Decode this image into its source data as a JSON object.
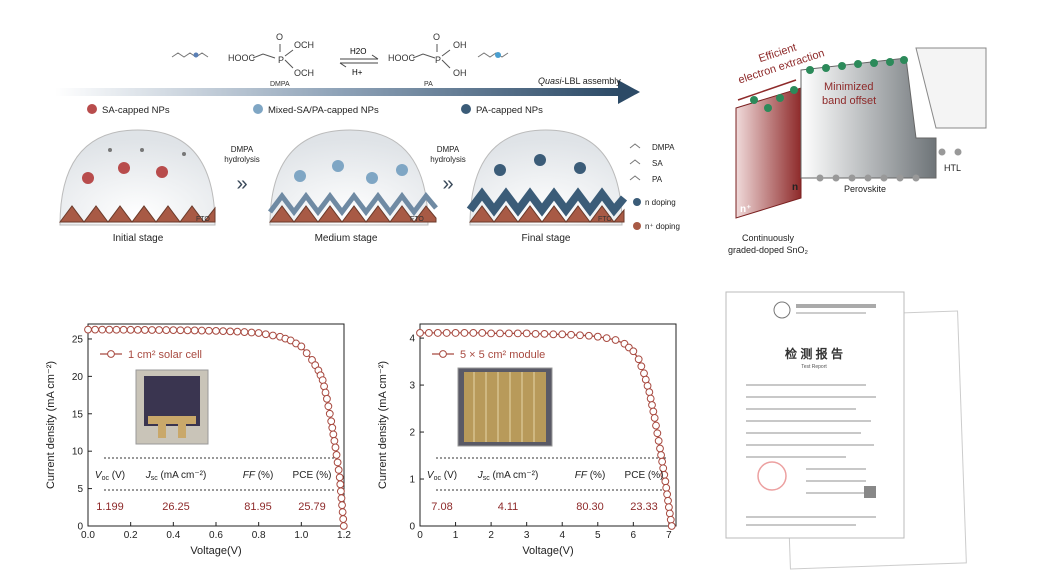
{
  "figure": {
    "top": {
      "dmpa_hooc": "HOOC",
      "dmpa_och3_top": "OCH",
      "dmpa_och3_bottom": "OCH",
      "dmpa_name": "DMPA",
      "reagent_top": "H2O",
      "reagent_bottom": "H+",
      "pa_hooc": "HOOC",
      "pa_oh_top": "OH",
      "pa_oh_bottom": "OH",
      "pa_name": "PA",
      "arrow_label_italic": "Quasi",
      "arrow_label_rest": "-LBL assembly",
      "legend_sa": "SA-capped NPs",
      "legend_mixed": "Mixed-SA/PA-capped NPs",
      "legend_pa": "PA-capped NPs",
      "step1_a": "DMPA",
      "step1_b": "hydrolysis",
      "step2_a": "DMPA",
      "step2_b": "hydrolysis",
      "fto": "FTO",
      "stage_initial": "Initial stage",
      "stage_medium": "Medium stage",
      "stage_final": "Final stage",
      "key_dmpa": "DMPA",
      "key_sa": "SA",
      "key_pa": "PA",
      "key_n_doping": "n doping",
      "key_n_plus_doping": "n⁺ doping"
    },
    "band": {
      "efficient_1": "Efficient",
      "efficient_2": "electron extraction",
      "minimized_1": "Minimized",
      "minimized_2": "band offset",
      "n_label": "n",
      "n_plus_label": "n⁺",
      "perovskite": "Perovskite",
      "htl": "HTL",
      "caption_1": "Continuously",
      "caption_2": "graded-doped SnO₂"
    },
    "cert": {
      "title": "检 测 报 告",
      "subtitle": "Test Report"
    }
  },
  "chart_data": [
    {
      "type": "line",
      "legend": "1 cm² solar cell",
      "xlabel": "Voltage(V)",
      "ylabel": "Current density (mA cm⁻²)",
      "xlim": [
        0,
        1.2
      ],
      "ylim": [
        0,
        27
      ],
      "xticks": [
        "0.0",
        "0.2",
        "0.4",
        "0.6",
        "0.8",
        "1.0",
        "1.2"
      ],
      "yticks": [
        "0",
        "5",
        "10",
        "15",
        "20",
        "25"
      ],
      "x": [
        0.0,
        0.1,
        0.2,
        0.3,
        0.4,
        0.5,
        0.6,
        0.7,
        0.8,
        0.9,
        0.95,
        1.0,
        1.05,
        1.08,
        1.1,
        1.12,
        1.14,
        1.16,
        1.18,
        1.199
      ],
      "y": [
        26.25,
        26.24,
        26.22,
        26.2,
        26.18,
        26.14,
        26.08,
        25.98,
        25.8,
        25.3,
        24.8,
        24.0,
        22.2,
        20.8,
        19.5,
        17.0,
        14.0,
        10.5,
        6.5,
        0.0
      ],
      "table_headers": [
        "V",
        "J",
        "FF (%)",
        "PCE (%)"
      ],
      "header_sub": [
        "oc",
        "sc"
      ],
      "header_units": [
        " (V)",
        " (mA cm⁻²)"
      ],
      "table_values": [
        "1.199",
        "26.25",
        "81.95",
        "25.79"
      ]
    },
    {
      "type": "line",
      "legend": "5 × 5 cm² module",
      "xlabel": "Voltage(V)",
      "ylabel": "Current density (mA cm⁻²)",
      "xlim": [
        0,
        7.2
      ],
      "ylim": [
        0,
        4.3
      ],
      "xticks": [
        "0",
        "1",
        "2",
        "3",
        "4",
        "5",
        "6",
        "7"
      ],
      "yticks": [
        "0",
        "1",
        "2",
        "3",
        "4"
      ],
      "x": [
        0.0,
        0.25,
        0.5,
        0.75,
        1.0,
        1.25,
        1.5,
        1.75,
        2.0,
        2.25,
        2.5,
        2.75,
        3.0,
        3.25,
        3.5,
        3.75,
        4.0,
        4.25,
        4.5,
        4.75,
        5.0,
        5.25,
        5.5,
        5.75,
        6.0,
        6.15,
        6.3,
        6.45,
        6.6,
        6.75,
        6.9,
        7.0,
        7.08
      ],
      "y": [
        4.11,
        4.11,
        4.11,
        4.11,
        4.11,
        4.11,
        4.11,
        4.11,
        4.1,
        4.1,
        4.1,
        4.1,
        4.1,
        4.09,
        4.09,
        4.08,
        4.08,
        4.07,
        4.06,
        4.05,
        4.03,
        4.0,
        3.96,
        3.88,
        3.72,
        3.55,
        3.25,
        2.85,
        2.3,
        1.65,
        0.95,
        0.4,
        0.0
      ],
      "table_headers": [
        "V",
        "J",
        "FF (%)",
        "PCE (%)"
      ],
      "header_sub": [
        "oc",
        "sc"
      ],
      "header_units": [
        " (V)",
        " (mA cm⁻²)"
      ],
      "table_values": [
        "7.08",
        "4.11",
        "80.30",
        "23.33"
      ]
    }
  ]
}
